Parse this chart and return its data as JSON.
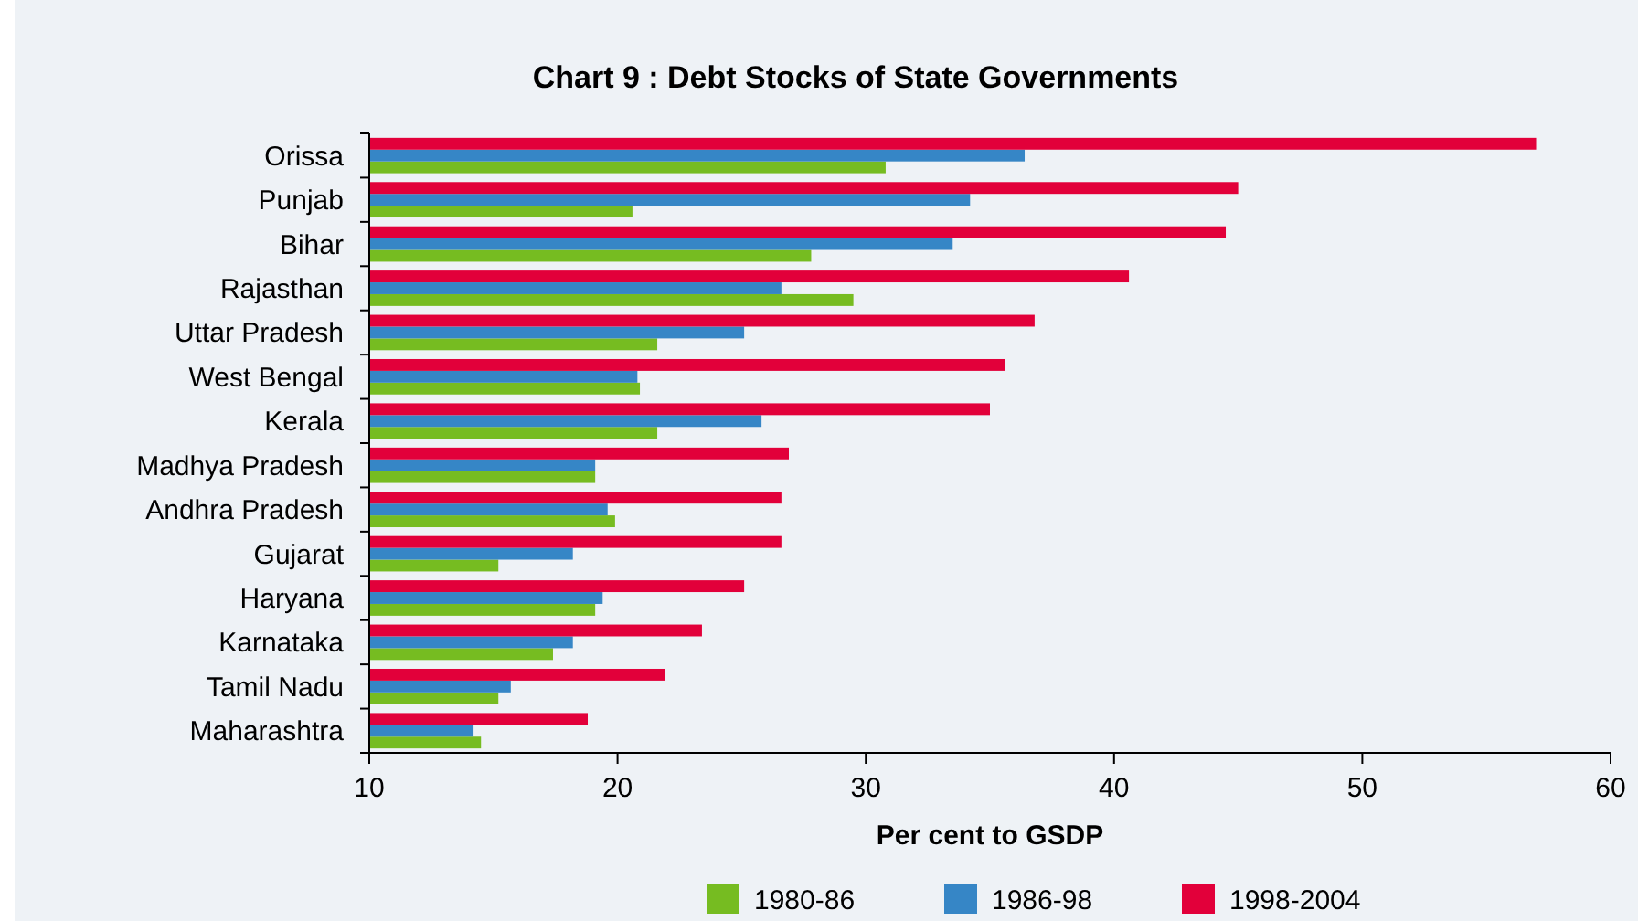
{
  "chart_data": {
    "type": "bar",
    "orientation": "horizontal",
    "title": "Chart  9 : Debt Stocks of State Governments",
    "xlabel": "Per cent to GSDP",
    "categories": [
      "Orissa",
      "Punjab",
      "Bihar",
      "Rajasthan",
      "Uttar Pradesh",
      "West Bengal",
      "Kerala",
      "Madhya Pradesh",
      "Andhra Pradesh",
      "Gujarat",
      "Haryana",
      "Karnataka",
      "Tamil Nadu",
      "Maharashtra"
    ],
    "series": [
      {
        "name": "1980-86",
        "color": "#76bc21",
        "values": [
          30.8,
          20.6,
          27.8,
          29.5,
          21.6,
          20.9,
          21.6,
          19.1,
          19.9,
          15.2,
          19.1,
          17.4,
          15.2,
          14.5
        ]
      },
      {
        "name": "1986-98",
        "color": "#3686c6",
        "values": [
          36.4,
          34.2,
          33.5,
          26.6,
          25.1,
          20.8,
          25.8,
          19.1,
          19.6,
          18.2,
          19.4,
          18.2,
          15.7,
          14.2
        ]
      },
      {
        "name": "1998-2004",
        "color": "#e2003a",
        "values": [
          57.0,
          45.0,
          44.5,
          40.6,
          36.8,
          35.6,
          35.0,
          26.9,
          26.6,
          26.6,
          25.1,
          23.4,
          21.9,
          18.8
        ]
      }
    ],
    "xlim": [
      10,
      60
    ],
    "xticks": [
      10,
      20,
      30,
      40,
      50,
      60
    ],
    "grid": false,
    "legend": "bottom"
  }
}
